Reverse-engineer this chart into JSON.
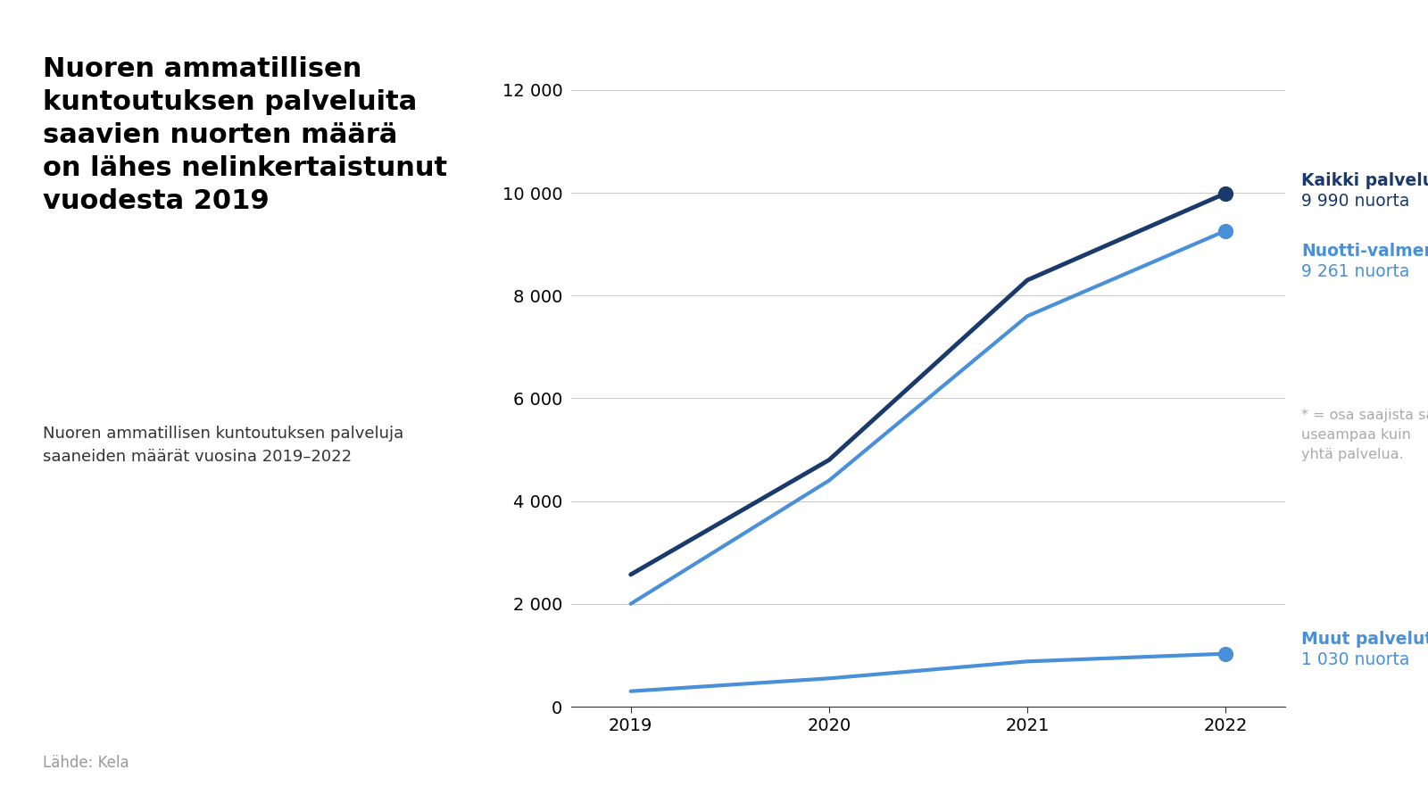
{
  "title": "Nuoren ammatillisen\nkuntoutuksen palveluita\nsaavien nuorten määrä\non lähes nelinkertaistunut\nvuodesta 2019",
  "subtitle": "Nuoren ammatillisen kuntoutuksen palveluja\nsaaneiden määrät vuosina 2019–2022",
  "source": "Lähde: Kela",
  "years": [
    2019,
    2020,
    2021,
    2022
  ],
  "kaikki_palvelut": [
    2570,
    4800,
    8300,
    9990
  ],
  "nuotti_valmennus": [
    2000,
    4400,
    7600,
    9261
  ],
  "muut_palvelut": [
    300,
    550,
    880,
    1030
  ],
  "color_kaikki": "#1a3a6b",
  "color_nuotti": "#4a90d9",
  "annotation_kaikki_label": "Kaikki palvelut*",
  "annotation_kaikki_value": "9 990 nuorta",
  "annotation_nuotti_label": "Nuotti-valmennus",
  "annotation_nuotti_value": "9 261 nuorta",
  "annotation_muut_label": "Muut palvelut",
  "annotation_muut_value": "1 030 nuorta",
  "footnote": "* = osa saajista sai\nuseampaa kuin\nyhtä palvelua.",
  "ylim": [
    0,
    12500
  ],
  "yticks": [
    0,
    2000,
    4000,
    6000,
    8000,
    10000,
    12000
  ],
  "ytick_labels": [
    "0",
    "2 000",
    "4 000",
    "6 000",
    "8 000",
    "10 000",
    "12 000"
  ],
  "background_color": "#ffffff",
  "grid_color": "#cccccc",
  "title_color": "#000000",
  "subtitle_color": "#333333",
  "source_color": "#999999"
}
